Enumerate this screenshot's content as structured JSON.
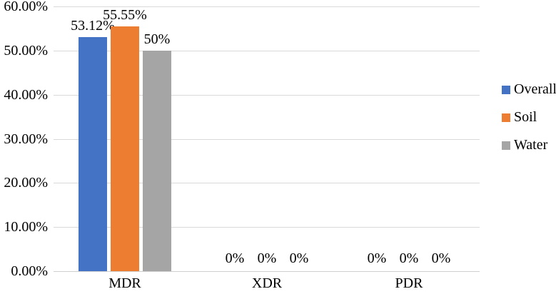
{
  "chart_data": {
    "type": "bar",
    "title": "",
    "xlabel": "",
    "ylabel": "",
    "categories": [
      "MDR",
      "XDR",
      "PDR"
    ],
    "series": [
      {
        "name": "Overall",
        "color": "#4472C4",
        "values": [
          53.12,
          0,
          0
        ],
        "data_labels": [
          "53.12%",
          "0%",
          "0%"
        ]
      },
      {
        "name": "Soil",
        "color": "#ED7D31",
        "values": [
          55.55,
          0,
          0
        ],
        "data_labels": [
          "55.55%",
          "0%",
          "0%"
        ]
      },
      {
        "name": "Water",
        "color": "#A5A5A5",
        "values": [
          50,
          0,
          0
        ],
        "data_labels": [
          "50%",
          "0%",
          "0%"
        ]
      }
    ],
    "ylim": [
      0,
      60
    ],
    "ytick_step": 10,
    "ytick_labels": [
      "0.00%",
      "10.00%",
      "20.00%",
      "30.00%",
      "40.00%",
      "50.00%",
      "60.00%"
    ],
    "grid": true,
    "legend_position": "right",
    "colors": {
      "gridline": "#D9D9D9",
      "axis_line": "#CFCFCF",
      "text": "#000000",
      "background": "#FFFFFF"
    }
  }
}
